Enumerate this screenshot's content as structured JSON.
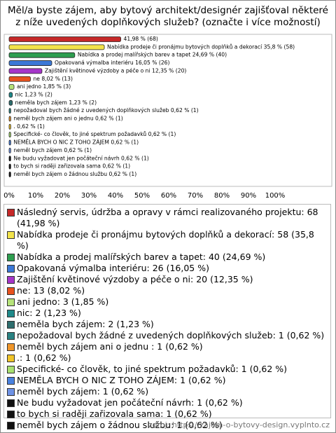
{
  "chart_data": {
    "type": "hbar",
    "title": "Měl/a byste zájem, aby bytový architekt/designér zajišťoval některé z níže uvedených doplňkových služeb? (označte i více možností)",
    "categories": [
      "Následný servis, údržba a opravy v rámci realizovaného projektu",
      "Nabídka prodeje či pronájmu bytových doplňků a dekorací",
      "Nabídka a prodej malířských barev a tapet",
      "Opakovaná výmalba interiéru",
      "Zajištění květinové výzdoby a péče o ni",
      "ne",
      "ani jedno",
      "nic",
      "neměla bych zájem",
      "nepožadoval bych žádné z uvedených doplňkových služeb",
      "neměl bych zájem ani o jednu",
      ".",
      "Specifické- co člověk, to jiné spektrum požadavků",
      "NEMĚLA BYCH O NIC Z TOHO ZÁJEM",
      "neměl bych zájem",
      "Ne budu vyžadovat jen počáteční návrh",
      "to bych si raději zařizovala sama",
      "neměl bych zájem o žádnou službu"
    ],
    "values": [
      41.98,
      35.8,
      24.69,
      16.05,
      12.35,
      8.02,
      1.85,
      1.23,
      1.23,
      0.62,
      0.62,
      0.62,
      0.62,
      0.62,
      0.62,
      0.62,
      0.62,
      0.62
    ],
    "value_labels": [
      "41,98 % (68)",
      "Nabídka prodeje či pronájmu bytových doplňků a dekorací 35,8 % (58)",
      "Nabídka a prodej malířských barev a tapet 24,69 % (40)",
      "Opakovaná výmalba interiéru 16,05 % (26)",
      "Zajištění květinové výzdoby a péče o ni 12,35 % (20)",
      "ne 8,02 % (13)",
      "ani jedno 1,85 % (3)",
      "nic 1,23 % (2)",
      "neměla bych zájem 1,23 % (2)",
      "nepožadoval bych žádné z uvedených doplňkových služeb 0,62 % (1)",
      "neměl bych zájem ani o jednu  0,62 % (1)",
      ". 0,62 % (1)",
      "Specifické- co člověk, to jiné spektrum požadavků 0,62 % (1)",
      "NEMĚLA BYCH O NIC Z TOHO ZÁJEM 0,62 % (1)",
      "neměl bych zájem 0,62 % (1)",
      "Ne budu vyžadovat jen počáteční návrh 0,62 % (1)",
      "to bych si raději zařizovala sama 0,62 % (1)",
      "neměl bych zájem o žádnou službu 0,62 % (1)"
    ],
    "legend_labels": [
      "Následný servis, údržba a opravy v rámci realizovaného projektu: 68 (41,98 %)",
      "Nabídka prodeje či pronájmu bytových doplňků a dekorací: 58 (35,8 %)",
      "Nabídka a prodej malířských barev a tapet: 40 (24,69 %)",
      "Opakovaná výmalba interiéru: 26 (16,05 %)",
      "Zajištění květinové výzdoby a péče o ni: 20 (12,35 %)",
      "ne: 13 (8,02 %)",
      "ani jedno: 3 (1,85 %)",
      "nic: 2 (1,23 %)",
      "neměla bych zájem: 2 (1,23 %)",
      "nepožadoval bych žádné z uvedených doplňkových služeb: 1 (0,62 %)",
      "neměl bych zájem ani o jednu : 1 (0,62 %)",
      ".: 1 (0,62 %)",
      "Specifické- co člověk, to jiné spektrum požadavků: 1 (0,62 %)",
      "NEMĚLA BYCH O NIC Z TOHO ZÁJEM: 1 (0,62 %)",
      "neměl bych zájem: 1 (0,62 %)",
      "Ne budu vyžadovat jen počáteční návrh: 1 (0,62 %)",
      "to bych si raději zařizovala sama: 1 (0,62 %)",
      "neměl bych zájem o žádnou službu: 1 (0,62 %)"
    ],
    "colors": [
      "#c62828",
      "#f2e34a",
      "#2e9e50",
      "#3b78d6",
      "#a636c9",
      "#e8521e",
      "#b6e37a",
      "#1f8a8a",
      "#2e6e6e",
      "#2a8282",
      "#f0962a",
      "#f0c428",
      "#a8e070",
      "#4a82e0",
      "#6f93e6",
      "#111111",
      "#111111",
      "#111111"
    ],
    "xlim": [
      0,
      120
    ],
    "xticks": [
      {
        "value": 0,
        "label": "0%"
      },
      {
        "value": 10,
        "label": "10%"
      },
      {
        "value": 20,
        "label": "20%"
      },
      {
        "value": 30,
        "label": "30%"
      },
      {
        "value": 40,
        "label": "40%"
      },
      {
        "value": 50,
        "label": "50%"
      },
      {
        "value": 60,
        "label": "60%"
      },
      {
        "value": 70,
        "label": "70%"
      },
      {
        "value": 80,
        "label": "80%"
      },
      {
        "value": 90,
        "label": "90%"
      },
      {
        "value": 100,
        "label": "100%"
      }
    ],
    "source": "zdroj: https://zajem-o-bytovy-design.vyplnto.cz"
  }
}
